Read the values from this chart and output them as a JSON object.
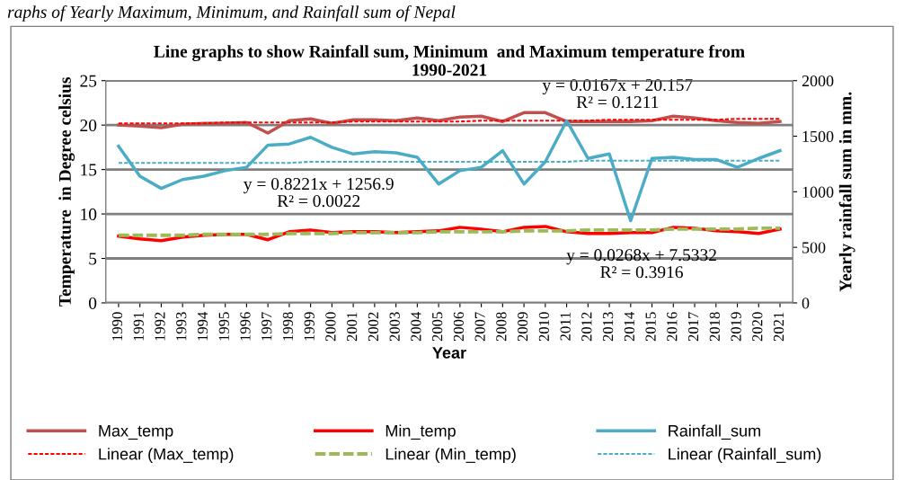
{
  "chart_data": {
    "type": "line",
    "title": "Line graphs to show Rainfall sum, Minimum  and Maximum temperature from\n1990-2021",
    "xlabel": "Year",
    "ylabel": "Temperature  in Degree celsius",
    "y2label": "Yearly rainfall sum in mm.",
    "categories": [
      "1990",
      "1991",
      "1992",
      "1993",
      "1994",
      "1995",
      "1996",
      "1997",
      "1998",
      "1999",
      "2000",
      "2001",
      "2002",
      "2003",
      "2004",
      "2005",
      "2006",
      "2007",
      "2008",
      "2009",
      "2010",
      "2011",
      "2012",
      "2013",
      "2014",
      "2015",
      "2016",
      "2017",
      "2018",
      "2019",
      "2020",
      "2021"
    ],
    "series": [
      {
        "name": "Max_temp",
        "color": "#c0504d",
        "line_style": "solid",
        "values": [
          20.0,
          19.9,
          19.7,
          20.1,
          20.2,
          20.2,
          20.3,
          19.1,
          20.5,
          20.7,
          20.2,
          20.6,
          20.6,
          20.5,
          20.8,
          20.5,
          20.9,
          21.0,
          20.4,
          21.4,
          21.4,
          20.4,
          20.4,
          20.4,
          20.4,
          20.5,
          21.0,
          20.8,
          20.5,
          20.3,
          20.2,
          20.4
        ]
      },
      {
        "name": "Min_temp",
        "color": "#ff0000",
        "line_style": "solid",
        "values": [
          7.5,
          7.2,
          7.0,
          7.4,
          7.6,
          7.7,
          7.7,
          7.1,
          8.0,
          8.2,
          7.9,
          8.0,
          8.0,
          7.9,
          8.0,
          8.1,
          8.5,
          8.3,
          8.0,
          8.5,
          8.6,
          8.0,
          7.8,
          7.8,
          7.9,
          7.9,
          8.5,
          8.4,
          8.1,
          8.0,
          7.8,
          8.3
        ]
      },
      {
        "name": "Rainfall_sum",
        "color": "#4bacc6",
        "line_style": "solid",
        "axis": "y2",
        "values": [
          1410,
          1140,
          1030,
          1110,
          1140,
          1190,
          1220,
          1420,
          1430,
          1490,
          1400,
          1340,
          1360,
          1350,
          1310,
          1070,
          1190,
          1220,
          1370,
          1070,
          1270,
          1640,
          1300,
          1340,
          740,
          1300,
          1310,
          1290,
          1290,
          1220,
          1300,
          1370
        ]
      },
      {
        "name": "Linear (Max_temp)",
        "color": "#ff0000",
        "line_style": "dotted",
        "values": [
          20.2,
          20.2,
          20.2,
          20.2,
          20.2,
          20.3,
          20.3,
          20.3,
          20.3,
          20.3,
          20.3,
          20.4,
          20.4,
          20.4,
          20.4,
          20.4,
          20.4,
          20.5,
          20.5,
          20.5,
          20.5,
          20.5,
          20.5,
          20.6,
          20.6,
          20.6,
          20.6,
          20.6,
          20.6,
          20.7,
          20.7,
          20.7
        ]
      },
      {
        "name": "Linear (Min_temp)",
        "color": "#9bbb59",
        "line_style": "dashed",
        "values": [
          7.6,
          7.6,
          7.6,
          7.6,
          7.7,
          7.7,
          7.7,
          7.7,
          7.8,
          7.8,
          7.8,
          7.9,
          7.9,
          7.9,
          7.9,
          8.0,
          8.0,
          8.0,
          8.0,
          8.1,
          8.1,
          8.1,
          8.2,
          8.2,
          8.2,
          8.2,
          8.3,
          8.3,
          8.3,
          8.3,
          8.4,
          8.4
        ]
      },
      {
        "name": "Linear (Rainfall_sum)",
        "color": "#4bacc6",
        "line_style": "dotted",
        "axis": "y2",
        "values": [
          1260,
          1260,
          1260,
          1260,
          1260,
          1260,
          1260,
          1260,
          1260,
          1270,
          1270,
          1270,
          1270,
          1270,
          1270,
          1270,
          1270,
          1270,
          1270,
          1270,
          1270,
          1270,
          1280,
          1280,
          1280,
          1280,
          1280,
          1280,
          1280,
          1280,
          1280,
          1280
        ]
      }
    ],
    "ylim": [
      0,
      25
    ],
    "yticks": [
      0,
      5,
      10,
      15,
      20,
      25
    ],
    "y2lim": [
      0,
      2000
    ],
    "y2ticks": [
      0,
      500,
      1000,
      1500,
      2000
    ],
    "grid": "y",
    "legend": "bottom",
    "marker": "none",
    "annotations": [
      "raphs of Yearly Maximum, Minimum, and Rainfall sum of Nepal",
      "y = 0.0167x + 20.157\nR² = 0.1211",
      "y = 0.8221x + 1256.9\nR² = 0.0022",
      "y = 0.0268x + 7.5332\nR² = 0.3916"
    ]
  }
}
